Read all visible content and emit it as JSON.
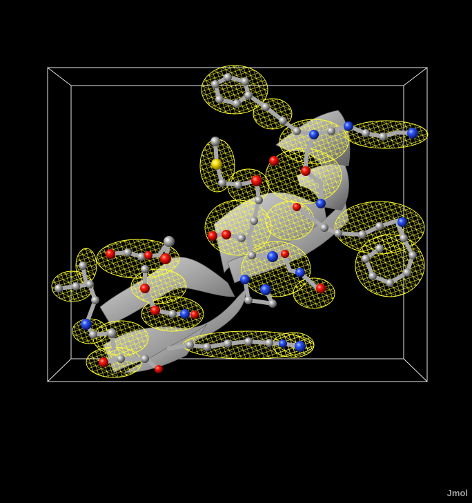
{
  "app": {
    "watermark": "Jmol"
  },
  "colors": {
    "background": "#000000",
    "box": "#e6e6e6",
    "mesh": "#ffff33",
    "carbon": "#9a9a9a",
    "oxygen": "#ff1a0d",
    "nitrogen": "#2a55ff",
    "sulfur": "#ffe10a",
    "ribbon": "#b3b3b3"
  },
  "scene": {
    "elements": [
      "carbon",
      "oxygen",
      "nitrogen",
      "sulfur"
    ],
    "representation": [
      "ball-and-stick",
      "helix-cartoon",
      "electron-density-mesh",
      "unit-cell-box"
    ]
  }
}
